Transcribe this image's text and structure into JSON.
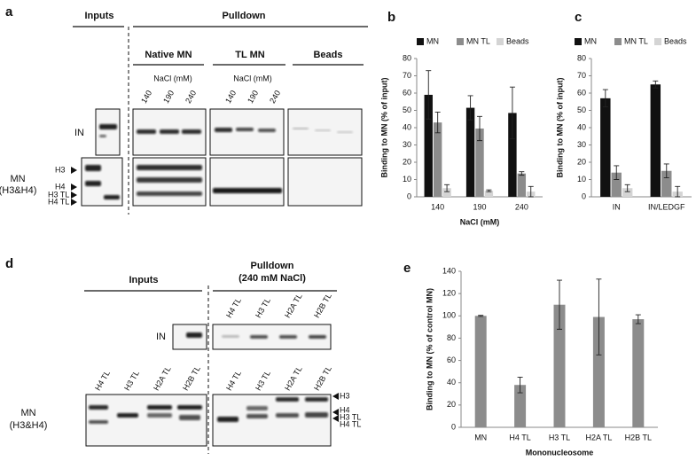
{
  "chart_data": [
    {
      "panel": "b",
      "type": "bar",
      "categories": [
        "140",
        "190",
        "240"
      ],
      "xlabel": "NaCl (mM)",
      "ylabel": "Binding to MN (% of input)",
      "ylim": [
        0,
        80
      ],
      "yticks": [
        0,
        10,
        20,
        30,
        40,
        50,
        60,
        70,
        80
      ],
      "legend_position": "top",
      "series": [
        {
          "name": "MN",
          "color": "#111111",
          "values": [
            59,
            51.5,
            48.5
          ],
          "errors": [
            14,
            7,
            15
          ]
        },
        {
          "name": "MN TL",
          "color": "#8c8c8c",
          "values": [
            43,
            39.5,
            13.5
          ],
          "errors": [
            6,
            7,
            1
          ]
        },
        {
          "name": "Beads",
          "color": "#d4d4d4",
          "values": [
            5,
            3.5,
            3
          ],
          "errors": [
            2,
            0.5,
            3
          ]
        }
      ]
    },
    {
      "panel": "c",
      "type": "bar",
      "categories": [
        "IN",
        "IN/LEDGF"
      ],
      "ylabel": "Binding to MN (% of input)",
      "ylim": [
        0,
        80
      ],
      "yticks": [
        0,
        10,
        20,
        30,
        40,
        50,
        60,
        70,
        80
      ],
      "legend_position": "top",
      "series": [
        {
          "name": "MN",
          "color": "#111111",
          "values": [
            57,
            65
          ],
          "errors": [
            5,
            2
          ]
        },
        {
          "name": "MN TL",
          "color": "#8c8c8c",
          "values": [
            14,
            15
          ],
          "errors": [
            4,
            4
          ]
        },
        {
          "name": "Beads",
          "color": "#d4d4d4",
          "values": [
            5,
            3
          ],
          "errors": [
            2,
            3
          ]
        }
      ]
    },
    {
      "panel": "e",
      "type": "bar",
      "categories": [
        "MN",
        "H4 TL",
        "H3 TL",
        "H2A TL",
        "H2B TL"
      ],
      "xlabel": "Mononucleosome",
      "ylabel": "Binding to MN (% of control MN)",
      "ylim": [
        0,
        140
      ],
      "yticks": [
        0,
        20,
        40,
        60,
        80,
        100,
        120,
        140
      ],
      "color": "#8c8c8c",
      "values": [
        100,
        38,
        110,
        99,
        97
      ],
      "errors": [
        0.5,
        7,
        22,
        34,
        4
      ]
    }
  ],
  "panel_a": {
    "label": "a",
    "inputs": "Inputs",
    "pulldown": "Pulldown",
    "groups": [
      "Native MN",
      "TL MN",
      "Beads"
    ],
    "nacl_label": "NaCl (mM)",
    "lanes": [
      "140",
      "190",
      "240"
    ],
    "row_labels": [
      "IN",
      "MN",
      "(H3&H4)"
    ],
    "markers": [
      "H3",
      "H4",
      "H3 TL",
      "H4 TL"
    ]
  },
  "panel_d": {
    "label": "d",
    "inputs": "Inputs",
    "pulldown": "Pulldown",
    "condition": "(240 mM NaCl)",
    "lanes": [
      "H4 TL",
      "H3 TL",
      "H2A TL",
      "H2B TL"
    ],
    "row_labels": [
      "IN",
      "MN",
      "(H3&H4)"
    ],
    "markers": [
      "H3",
      "H4",
      "H3 TL",
      "H4 TL"
    ]
  }
}
